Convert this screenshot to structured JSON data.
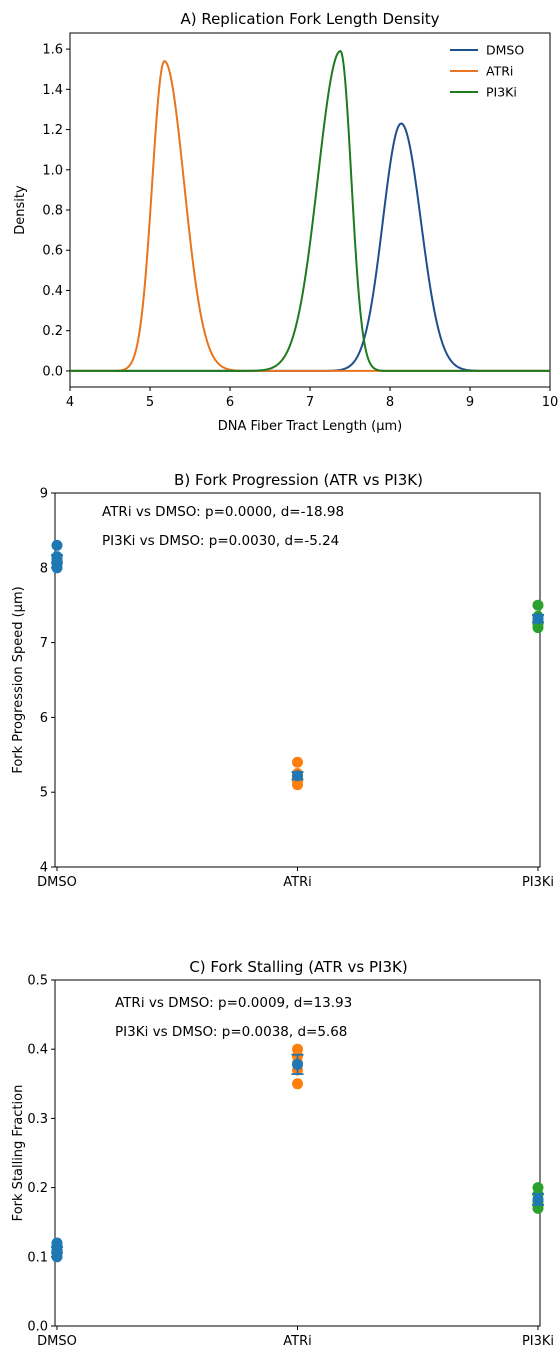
{
  "chart_data": [
    {
      "type": "line",
      "title": "A) Replication Fork Length Density",
      "xlabel": "DNA Fiber Tract Length (µm)",
      "ylabel": "Density",
      "xlim": [
        4,
        10
      ],
      "ylim": [
        -0.08,
        1.68
      ],
      "xticks": [
        "4",
        "5",
        "6",
        "7",
        "8",
        "9",
        "10"
      ],
      "yticks": [
        "0.0",
        "0.2",
        "0.4",
        "0.6",
        "0.8",
        "1.0",
        "1.2",
        "1.4",
        "1.6"
      ],
      "legend_position": "top-right",
      "series": [
        {
          "name": "DMSO",
          "color": "#1f4e8c",
          "peak_x": 8.14,
          "peak_y": 1.23,
          "half_width_left": 0.27,
          "half_width_right": 0.29
        },
        {
          "name": "ATRi",
          "color": "#e8741e",
          "peak_x": 5.18,
          "peak_y": 1.54,
          "half_width_left": 0.18,
          "half_width_right": 0.29
        },
        {
          "name": "PI3Ki",
          "color": "#1e7a1e",
          "peak_x": 7.38,
          "peak_y": 1.59,
          "half_width_left": 0.33,
          "half_width_right": 0.16
        }
      ]
    },
    {
      "type": "scatter",
      "title": "B) Fork Progression (ATR vs PI3K)",
      "xlabel": "",
      "ylabel": "Fork Progression Speed (µm)",
      "categories": [
        "DMSO",
        "ATRi",
        "PI3Ki"
      ],
      "ylim": [
        4,
        9
      ],
      "yticks": [
        "4",
        "5",
        "6",
        "7",
        "8",
        "9"
      ],
      "annotations": [
        "ATRi vs DMSO: p=0.0000, d=-18.98",
        "PI3Ki vs DMSO: p=0.0030, d=-5.24"
      ],
      "groups": [
        {
          "category": "DMSO",
          "color": "#1f77b4",
          "points": [
            8.0,
            8.05,
            8.1,
            8.15,
            8.3
          ],
          "mean": 8.12,
          "sem": 0.05
        },
        {
          "category": "ATRi",
          "color": "#ff7f0e",
          "points": [
            5.1,
            5.15,
            5.2,
            5.25,
            5.4
          ],
          "mean": 5.22,
          "sem": 0.05
        },
        {
          "category": "PI3Ki",
          "color": "#2ca02c",
          "points": [
            7.2,
            7.25,
            7.3,
            7.35,
            7.5
          ],
          "mean": 7.32,
          "sem": 0.05
        }
      ],
      "mean_color": "#1f77b4"
    },
    {
      "type": "scatter",
      "title": "C) Fork Stalling (ATR vs PI3K)",
      "xlabel": "",
      "ylabel": "Fork Stalling Fraction",
      "categories": [
        "DMSO",
        "ATRi",
        "PI3Ki"
      ],
      "ylim": [
        0.0,
        0.5
      ],
      "yticks": [
        "0.0",
        "0.1",
        "0.2",
        "0.3",
        "0.4",
        "0.5"
      ],
      "annotations": [
        "ATRi vs DMSO: p=0.0009, d=13.93",
        "PI3Ki vs DMSO: p=0.0038, d=5.68"
      ],
      "groups": [
        {
          "category": "DMSO",
          "color": "#1f77b4",
          "points": [
            0.1,
            0.105,
            0.11,
            0.115,
            0.12
          ],
          "mean": 0.11,
          "sem": 0.004
        },
        {
          "category": "ATRi",
          "color": "#ff7f0e",
          "points": [
            0.35,
            0.37,
            0.38,
            0.39,
            0.4
          ],
          "mean": 0.378,
          "sem": 0.014
        },
        {
          "category": "PI3Ki",
          "color": "#2ca02c",
          "points": [
            0.17,
            0.175,
            0.18,
            0.19,
            0.2
          ],
          "mean": 0.183,
          "sem": 0.008
        }
      ],
      "mean_color": "#1f77b4"
    }
  ]
}
